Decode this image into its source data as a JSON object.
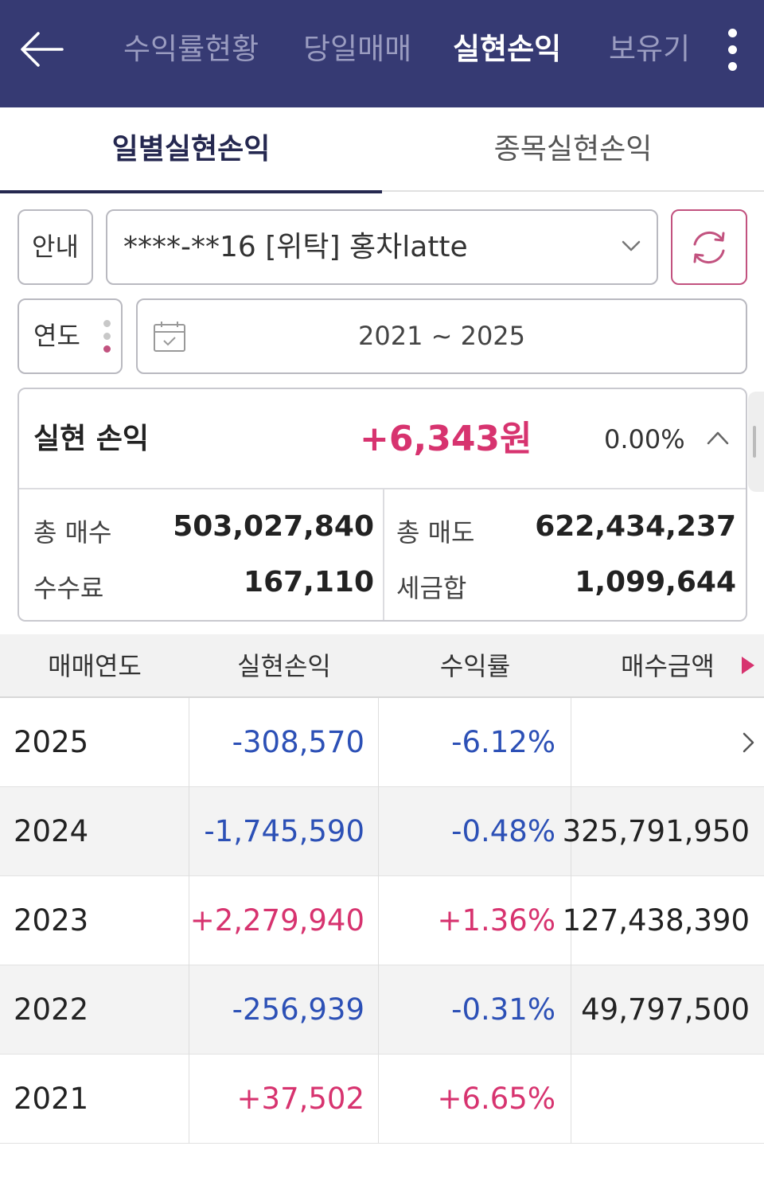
{
  "header": {
    "tabs": [
      {
        "label": "수익률현황",
        "active": false
      },
      {
        "label": "당일매매",
        "active": false
      },
      {
        "label": "실현손익",
        "active": true
      },
      {
        "label": "보유기",
        "active": false
      }
    ],
    "icons": {
      "back": "back-arrow-icon",
      "more": "more-vertical-icon"
    },
    "background_color": "#363a73"
  },
  "subtabs": [
    {
      "label": "일별실현손익",
      "active": true
    },
    {
      "label": "종목실현손익",
      "active": false
    }
  ],
  "controls": {
    "guide_label": "안내",
    "account": "****-**16 [위탁] 홍차latte",
    "year_label": "연도",
    "date_range": "2021 ~ 2025",
    "icons": {
      "dropdown": "chevron-down-icon",
      "refresh": "refresh-icon",
      "calendar": "calendar-icon"
    }
  },
  "summary": {
    "title": "실현 손익",
    "profit": "+6,343원",
    "rate": "0.00%",
    "total_buy_label": "총 매수",
    "total_buy": "503,027,840",
    "total_sell_label": "총 매도",
    "total_sell": "622,434,237",
    "fee_label": "수수료",
    "fee": "167,110",
    "tax_label": "세금합",
    "tax": "1,099,644"
  },
  "table": {
    "headers": [
      "매매연도",
      "실현손익",
      "수익률",
      "매수금액"
    ],
    "rows": [
      {
        "year": "2025",
        "profit": "-308,570",
        "rate": "-6.12%",
        "buy": "",
        "sign": "neg"
      },
      {
        "year": "2024",
        "profit": "-1,745,590",
        "rate": "-0.48%",
        "buy": "325,791,950",
        "sign": "neg"
      },
      {
        "year": "2023",
        "profit": "+2,279,940",
        "rate": "+1.36%",
        "buy": "127,438,390",
        "sign": "pos"
      },
      {
        "year": "2022",
        "profit": "-256,939",
        "rate": "-0.31%",
        "buy": "49,797,500",
        "sign": "neg"
      },
      {
        "year": "2021",
        "profit": "+37,502",
        "rate": "+6.65%",
        "buy": "",
        "sign": "pos"
      }
    ]
  },
  "colors": {
    "positive": "#d7336f",
    "negative": "#2c50b6",
    "accent": "#c2527f"
  }
}
